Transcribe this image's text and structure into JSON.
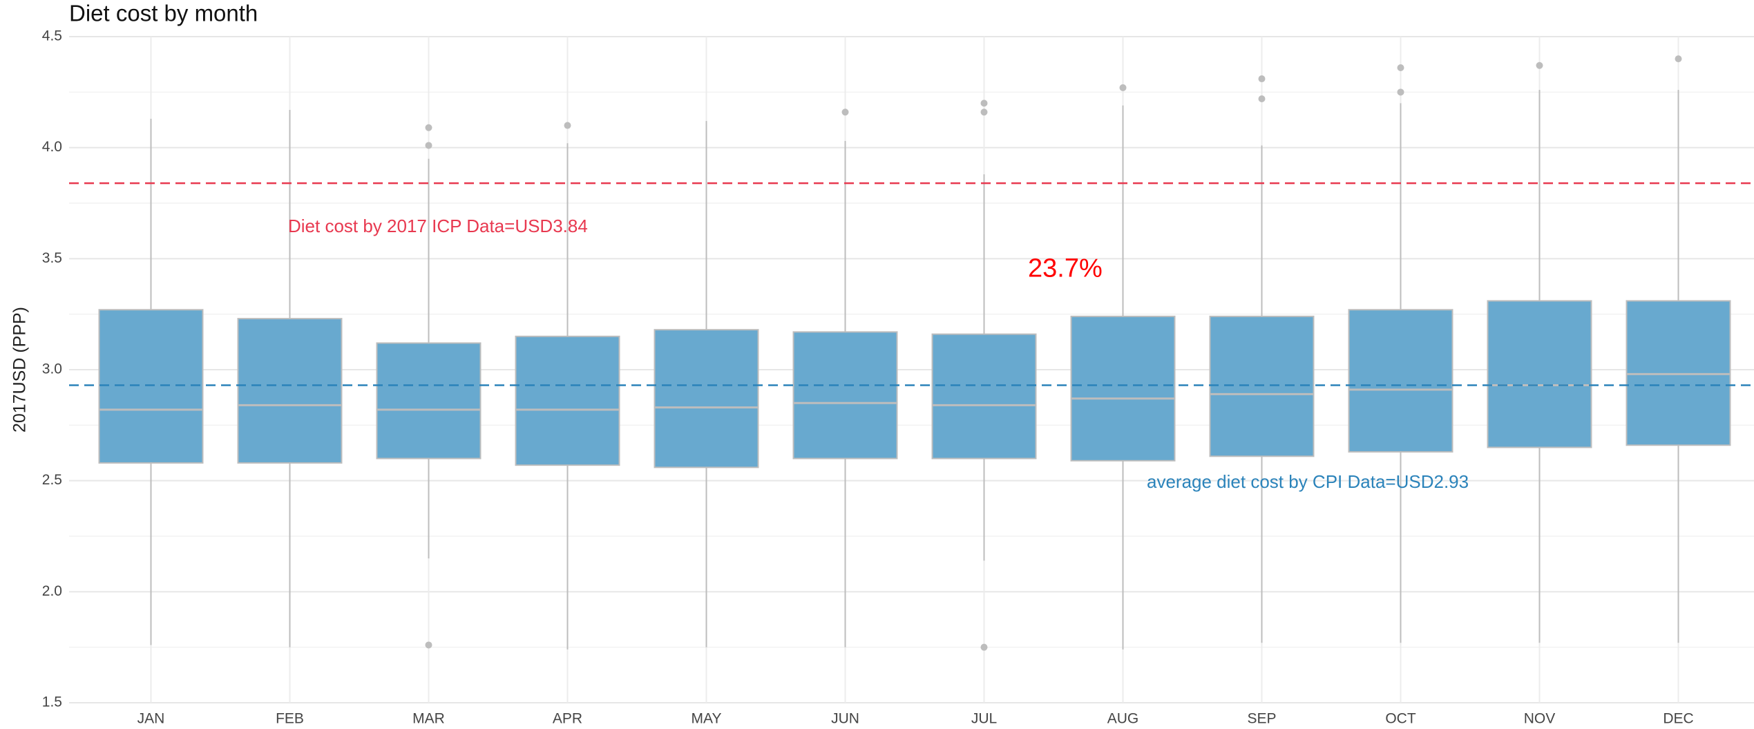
{
  "chart_data": {
    "type": "box",
    "title": "Diet cost by month",
    "y_label": "2017USD (PPP)",
    "categories": [
      "JAN",
      "FEB",
      "MAR",
      "APR",
      "MAY",
      "JUN",
      "JUL",
      "AUG",
      "SEP",
      "OCT",
      "NOV",
      "DEC"
    ],
    "whisker_low": [
      1.76,
      1.75,
      2.15,
      1.74,
      1.75,
      1.75,
      2.14,
      1.74,
      1.77,
      1.77,
      1.77,
      1.77
    ],
    "q1": [
      2.58,
      2.58,
      2.6,
      2.57,
      2.56,
      2.6,
      2.6,
      2.59,
      2.61,
      2.63,
      2.65,
      2.66
    ],
    "median": [
      2.82,
      2.84,
      2.82,
      2.82,
      2.83,
      2.85,
      2.84,
      2.87,
      2.89,
      2.91,
      2.93,
      2.98
    ],
    "q3": [
      3.27,
      3.23,
      3.12,
      3.15,
      3.18,
      3.17,
      3.16,
      3.24,
      3.24,
      3.27,
      3.31,
      3.31
    ],
    "whisker_high": [
      4.13,
      4.17,
      3.95,
      4.02,
      4.12,
      4.03,
      3.88,
      4.19,
      4.01,
      4.2,
      4.26,
      4.26
    ],
    "outliers": [
      [],
      [],
      [
        4.09,
        4.01,
        1.76
      ],
      [
        4.1
      ],
      [],
      [
        4.16
      ],
      [
        4.2,
        4.16,
        1.75
      ],
      [
        4.27
      ],
      [
        4.31,
        4.22
      ],
      [
        4.36,
        4.25
      ],
      [
        4.37
      ],
      [
        4.4
      ]
    ],
    "box_color": "#68a9cf",
    "line_color": "#bdbdbd",
    "reference_lines": [
      {
        "value": 3.84,
        "color": "#e8384f",
        "label": "Diet cost by 2017 ICP Data=USD3.84"
      },
      {
        "value": 2.93,
        "color": "#2b83ba",
        "label": "average diet cost by CPI Data=USD2.93"
      }
    ],
    "annotation": {
      "text": "23.7%",
      "color": "#ff0000"
    },
    "ylim": [
      1.5,
      4.5
    ],
    "yticks": [
      {
        "value": 1.5,
        "label": "1.5"
      },
      {
        "value": 2,
        "label": "2.0"
      },
      {
        "value": 2.5,
        "label": "2.5"
      },
      {
        "value": 3,
        "label": "3.0"
      },
      {
        "value": 3.5,
        "label": "3.5"
      },
      {
        "value": 4,
        "label": "4.0"
      },
      {
        "value": 4.5,
        "label": "4.5"
      }
    ],
    "grid": true
  }
}
